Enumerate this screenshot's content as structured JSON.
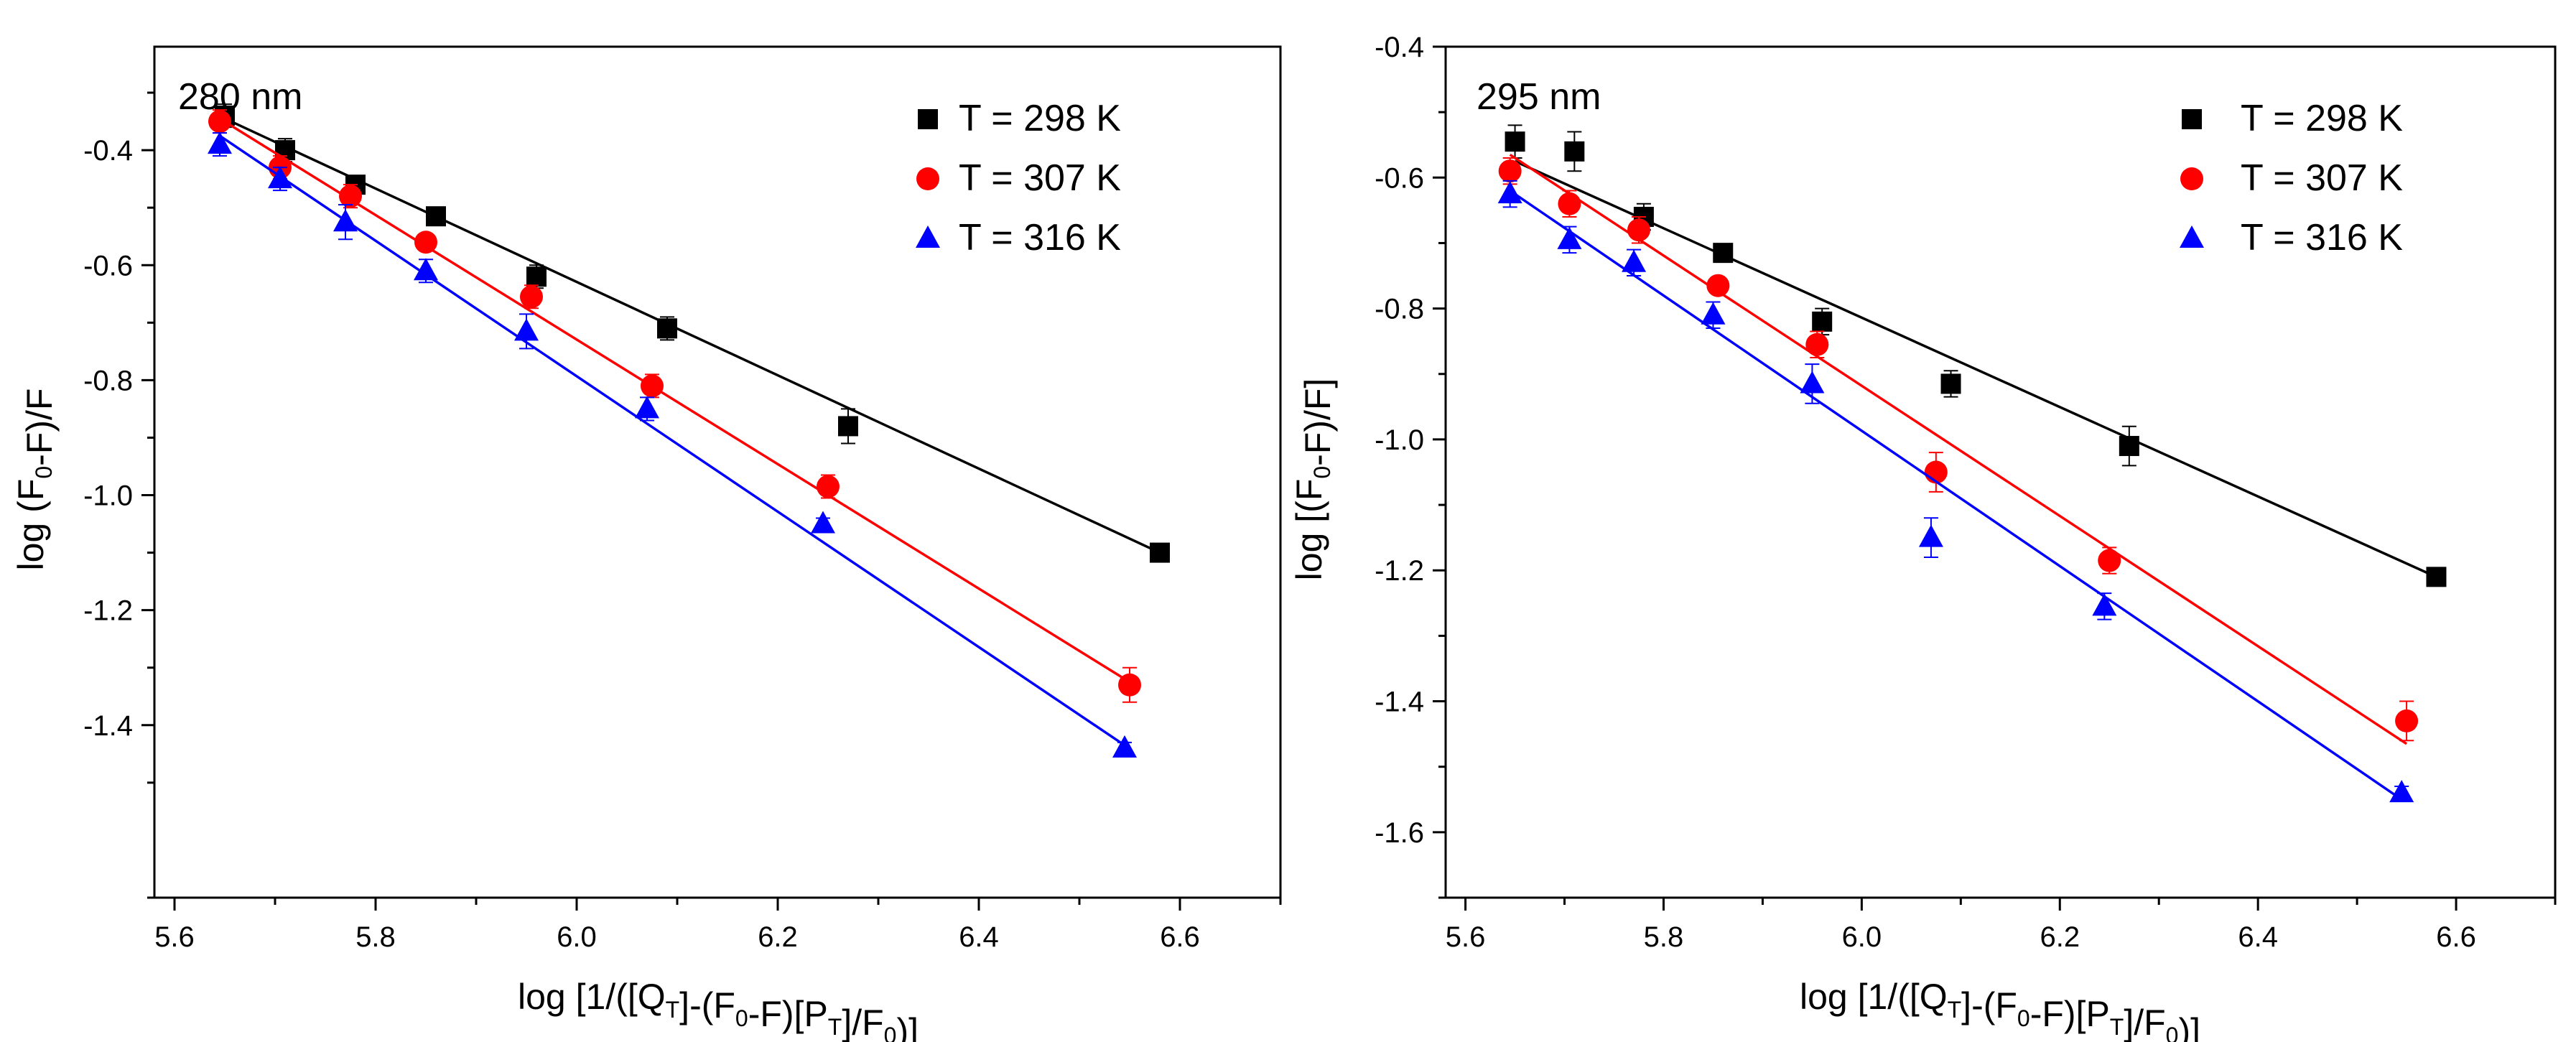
{
  "chart_data": [
    {
      "type": "scatter",
      "panel_label": "280 nm",
      "xlabel": "log [1/([QT]-(F0-F)[PT]/F0)]",
      "ylabel": "log (F0-F)/F",
      "xlim": [
        5.58,
        6.7
      ],
      "ylim": [
        -1.7,
        -0.22
      ],
      "x_ticks": [
        5.6,
        5.8,
        6.0,
        6.2,
        6.4,
        6.6
      ],
      "y_ticks": [
        -0.4,
        -0.6,
        -0.8,
        -1.0,
        -1.2,
        -1.4
      ],
      "x_tick_labels": [
        "5.6",
        "5.8",
        "6.0",
        "6.2",
        "6.4",
        "6.6"
      ],
      "y_tick_labels": [
        "-0.4",
        "-0.6",
        "-0.8",
        "-1.0",
        "-1.2",
        "-1.4"
      ],
      "legend_position": "top-right",
      "series": [
        {
          "name": "T = 298 K",
          "marker": "square",
          "color": "#000000",
          "x": [
            5.65,
            5.71,
            5.78,
            5.86,
            5.96,
            6.09,
            6.27,
            6.58
          ],
          "y": [
            -0.34,
            -0.4,
            -0.46,
            -0.515,
            -0.62,
            -0.71,
            -0.88,
            -1.1
          ],
          "err": [
            0.02,
            0.02,
            0.01,
            0.01,
            0.02,
            0.02,
            0.03,
            0.01
          ],
          "fit": [
            [
              5.65,
              -0.345
            ],
            [
              6.58,
              -1.1
            ]
          ]
        },
        {
          "name": "T = 307 K",
          "marker": "circle",
          "color": "#ff0000",
          "x": [
            5.645,
            5.705,
            5.775,
            5.85,
            5.955,
            6.075,
            6.25,
            6.55
          ],
          "y": [
            -0.35,
            -0.43,
            -0.48,
            -0.56,
            -0.655,
            -0.81,
            -0.985,
            -1.33
          ],
          "err": [
            0.02,
            0.02,
            0.02,
            0.01,
            0.02,
            0.02,
            0.02,
            0.03
          ],
          "fit": [
            [
              5.645,
              -0.345
            ],
            [
              6.55,
              -1.325
            ]
          ]
        },
        {
          "name": "T = 316 K",
          "marker": "triangle",
          "color": "#0000ff",
          "x": [
            5.645,
            5.705,
            5.77,
            5.85,
            5.95,
            6.07,
            6.245,
            6.545
          ],
          "y": [
            -0.39,
            -0.45,
            -0.525,
            -0.61,
            -0.715,
            -0.85,
            -1.05,
            -1.44
          ],
          "err": [
            0.02,
            0.02,
            0.03,
            0.02,
            0.03,
            0.02,
            0.01,
            0.01
          ],
          "fit": [
            [
              5.645,
              -0.375
            ],
            [
              6.545,
              -1.435
            ]
          ]
        }
      ]
    },
    {
      "type": "scatter",
      "panel_label": "295 nm",
      "xlabel": "log [1/([QT]-(F0-F)[PT]/F0)]",
      "ylabel": "log [(F0-F)/F]",
      "xlim": [
        5.58,
        6.7
      ],
      "ylim": [
        -1.7,
        -0.4
      ],
      "x_ticks": [
        5.6,
        5.8,
        6.0,
        6.2,
        6.4,
        6.6
      ],
      "y_ticks": [
        -0.4,
        -0.6,
        -0.8,
        -1.0,
        -1.2,
        -1.4,
        -1.6
      ],
      "x_tick_labels": [
        "5.6",
        "5.8",
        "6.0",
        "6.2",
        "6.4",
        "6.6"
      ],
      "y_tick_labels": [
        "-0.4",
        "-0.6",
        "-0.8",
        "-1.0",
        "-1.2",
        "-1.4",
        "-1.6"
      ],
      "legend_position": "top-right",
      "series": [
        {
          "name": "T = 298 K",
          "marker": "square",
          "color": "#000000",
          "x": [
            5.65,
            5.71,
            5.78,
            5.86,
            5.96,
            6.09,
            6.27,
            6.58
          ],
          "y": [
            -0.545,
            -0.56,
            -0.66,
            -0.715,
            -0.82,
            -0.915,
            -1.01,
            -1.21
          ],
          "err": [
            0.025,
            0.03,
            0.02,
            0.01,
            0.02,
            0.02,
            0.03,
            0.01
          ],
          "fit": [
            [
              5.65,
              -0.575
            ],
            [
              6.58,
              -1.21
            ]
          ]
        },
        {
          "name": "T = 307 K",
          "marker": "circle",
          "color": "#ff0000",
          "x": [
            5.645,
            5.705,
            5.775,
            5.855,
            5.955,
            6.075,
            6.25,
            6.55
          ],
          "y": [
            -0.59,
            -0.64,
            -0.68,
            -0.765,
            -0.855,
            -1.05,
            -1.185,
            -1.43
          ],
          "err": [
            0.02,
            0.02,
            0.02,
            0.01,
            0.02,
            0.03,
            0.02,
            0.03
          ],
          "fit": [
            [
              5.645,
              -0.565
            ],
            [
              6.55,
              -1.465
            ]
          ]
        },
        {
          "name": "T = 316 K",
          "marker": "triangle",
          "color": "#0000ff",
          "x": [
            5.645,
            5.705,
            5.77,
            5.85,
            5.95,
            6.07,
            6.245,
            6.545
          ],
          "y": [
            -0.625,
            -0.695,
            -0.73,
            -0.81,
            -0.915,
            -1.15,
            -1.255,
            -1.54
          ],
          "err": [
            0.02,
            0.02,
            0.02,
            0.02,
            0.03,
            0.03,
            0.02,
            0.01
          ],
          "fit": [
            [
              5.645,
              -0.62
            ],
            [
              6.545,
              -1.55
            ]
          ]
        }
      ]
    }
  ]
}
